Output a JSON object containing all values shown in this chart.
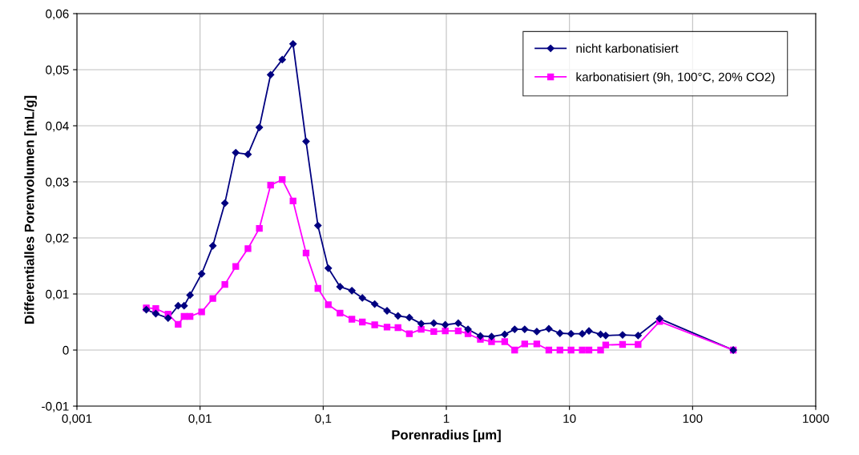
{
  "chart_data": {
    "type": "line",
    "xlabel": "Porenradius [µm]",
    "ylabel": "Differentialles Porenvolumen [mL/g]",
    "log": "x",
    "grid": true,
    "legend": "top right",
    "line_style": "solid",
    "xlim": [
      0.001,
      1000
    ],
    "xticks": [
      {
        "value": 0.001,
        "label": "0,001"
      },
      {
        "value": 0.01,
        "label": "0,01"
      },
      {
        "value": 0.1,
        "label": "0,1"
      },
      1,
      10,
      100,
      1000
    ],
    "ylim": [
      -0.01,
      0.06
    ],
    "yticks": [
      {
        "value": -0.01,
        "label": "-0,01"
      },
      0,
      {
        "value": 0.01,
        "label": "0,01"
      },
      {
        "value": 0.02,
        "label": "0,02"
      },
      {
        "value": 0.03,
        "label": "0,03"
      },
      {
        "value": 0.04,
        "label": "0,04"
      },
      {
        "value": 0.05,
        "label": "0,05"
      },
      {
        "value": 0.06,
        "label": "0,06"
      }
    ],
    "x": [
      0.00366,
      0.00437,
      0.0055,
      0.00664,
      0.00742,
      0.00829,
      0.0103,
      0.0127,
      0.0159,
      0.0195,
      0.0245,
      0.0303,
      0.0374,
      0.0465,
      0.0569,
      0.0726,
      0.0906,
      0.11,
      0.137,
      0.171,
      0.208,
      0.262,
      0.33,
      0.405,
      0.501,
      0.625,
      0.791,
      0.98,
      1.25,
      1.5,
      1.89,
      2.33,
      2.98,
      3.59,
      4.33,
      5.43,
      6.8,
      8.37,
      10.3,
      12.7,
      14.4,
      17.9,
      19.7,
      27.0,
      36.1,
      54.0,
      214
    ],
    "series": [
      {
        "name": "nicht karbonatisiert",
        "color": "#000080",
        "marker": "diamond",
        "values": [
          0.0072,
          0.0065,
          0.0057,
          0.0079,
          0.0079,
          0.0098,
          0.0136,
          0.0186,
          0.0262,
          0.0352,
          0.0349,
          0.0397,
          0.0491,
          0.0518,
          0.0546,
          0.0372,
          0.0222,
          0.0146,
          0.0113,
          0.0106,
          0.0093,
          0.0082,
          0.007,
          0.0061,
          0.0058,
          0.0047,
          0.0048,
          0.0045,
          0.0048,
          0.0037,
          0.0025,
          0.0024,
          0.0028,
          0.0037,
          0.0037,
          0.0033,
          0.0038,
          0.003,
          0.0029,
          0.0029,
          0.0034,
          0.0028,
          0.0026,
          0.0027,
          0.0026,
          0.0056,
          0.0
        ]
      },
      {
        "name": "karbonatisiert (9h, 100°C, 20% CO2)",
        "color": "#ff00ff",
        "marker": "square",
        "values": [
          0.0075,
          0.0074,
          0.0064,
          0.0046,
          0.006,
          0.006,
          0.0068,
          0.0092,
          0.0117,
          0.0149,
          0.0181,
          0.0217,
          0.0294,
          0.0304,
          0.0266,
          0.0173,
          0.011,
          0.0081,
          0.0066,
          0.0055,
          0.005,
          0.0045,
          0.0041,
          0.004,
          0.0029,
          0.0037,
          0.0033,
          0.0034,
          0.0034,
          0.0029,
          0.0019,
          0.0015,
          0.0015,
          0.0,
          0.0011,
          0.0011,
          0.0,
          0.0,
          0.0,
          0.0,
          0.0,
          0.0,
          0.0009,
          0.001,
          0.001,
          0.0051,
          0.0
        ]
      }
    ]
  }
}
